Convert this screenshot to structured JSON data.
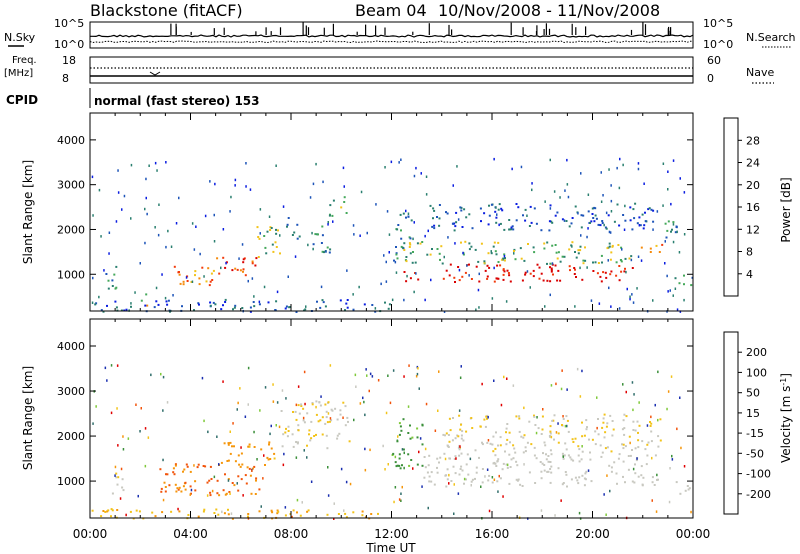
{
  "header": {
    "station": "Blackstone (fitACF)",
    "beam": "Beam 04",
    "dates": "10/Nov/2008 - 11/Nov/2008",
    "cpid": "normal (fast stereo) 153"
  },
  "strip_labels": {
    "nsky": "N.Sky",
    "nsearch": "N.Search",
    "freq_line1": "Freq.",
    "freq_line2": "[MHz]",
    "nave": "Nave",
    "cpid": "CPID"
  },
  "strip_ticks": {
    "noise_top": "10^5",
    "noise_bottom": "10^0",
    "noise_top_right": "10^5",
    "noise_bottom_right": "10^0",
    "freq_top": "18",
    "freq_bottom": "8",
    "nave_top": "60",
    "nave_bottom": "0"
  },
  "chart_data": [
    {
      "type": "heatmap",
      "name": "power",
      "ylabel": "Slant Range [km]",
      "xlabel": "Time UT",
      "x_ticks": [
        "00:00",
        "04:00",
        "08:00",
        "12:00",
        "16:00",
        "20:00",
        "00:00"
      ],
      "xlim_hours": [
        0,
        24
      ],
      "ylim": [
        180,
        4600
      ],
      "y_ticks": [
        1000,
        2000,
        3000,
        4000
      ],
      "colorbar": {
        "label": "Power [dB]",
        "ticks": [
          "4",
          "8",
          "12",
          "16",
          "20",
          "24",
          "28"
        ],
        "colors": [
          "#0a1de0",
          "#1d54b8",
          "#2a7f6f",
          "#44a85a",
          "#f2c319",
          "#f58a0b",
          "#f23a0b",
          "#d90000"
        ]
      },
      "regions": [
        {
          "t": [
            0.6,
            1.3
          ],
          "r": [
            700,
            1250
          ],
          "level": 8
        },
        {
          "t": [
            1.8,
            2.3
          ],
          "r": [
            300,
            600
          ],
          "level": 16
        },
        {
          "t": [
            3.3,
            5.0
          ],
          "r": [
            700,
            1250
          ],
          "level": 20
        },
        {
          "t": [
            5.0,
            6.6
          ],
          "r": [
            900,
            1400
          ],
          "level": 24
        },
        {
          "t": [
            6.6,
            7.6
          ],
          "r": [
            1300,
            2100
          ],
          "level": 12
        },
        {
          "t": [
            7.8,
            8.4
          ],
          "r": [
            1800,
            2400
          ],
          "level": 8
        },
        {
          "t": [
            8.8,
            9.6
          ],
          "r": [
            1500,
            2200
          ],
          "level": 8
        },
        {
          "t": [
            9.5,
            10.3
          ],
          "r": [
            2300,
            2800
          ],
          "level": 12
        },
        {
          "t": [
            12.0,
            12.8
          ],
          "r": [
            1300,
            2400
          ],
          "level": 8
        },
        {
          "t": [
            12.4,
            21.6
          ],
          "r": [
            850,
            1250
          ],
          "level": 28
        },
        {
          "t": [
            12.4,
            21.6
          ],
          "r": [
            1250,
            1750
          ],
          "level": 12
        },
        {
          "t": [
            13.5,
            22.5
          ],
          "r": [
            2000,
            2600
          ],
          "level": 4
        },
        {
          "t": [
            21.7,
            22.8
          ],
          "r": [
            1450,
            1700
          ],
          "level": 20
        },
        {
          "t": [
            22.8,
            23.4
          ],
          "r": [
            1700,
            2300
          ],
          "level": 8
        },
        {
          "t": [
            23.2,
            24.0
          ],
          "r": [
            700,
            1000
          ],
          "level": 8
        },
        {
          "t": [
            0.0,
            12.0
          ],
          "r": [
            180,
            450
          ],
          "level": 4
        }
      ]
    },
    {
      "type": "heatmap",
      "name": "velocity",
      "ylabel": "Slant Range [km]",
      "xlabel": "Time UT",
      "x_ticks": [
        "00:00",
        "04:00",
        "08:00",
        "12:00",
        "16:00",
        "20:00",
        "00:00"
      ],
      "xlim_hours": [
        0,
        24
      ],
      "ylim": [
        180,
        4600
      ],
      "y_ticks": [
        1000,
        2000,
        3000,
        4000
      ],
      "colorbar": {
        "label": "Velocity [m s^-1]",
        "ticks": [
          "200",
          "100",
          "50",
          "15",
          "-15",
          "-50",
          "-100",
          "-200"
        ],
        "colors": [
          "#1a2fb0",
          "#2f6d6a",
          "#3b8f3a",
          "#7fc93a",
          "#c8c8c0",
          "#f2c319",
          "#f5960b",
          "#f2540b",
          "#e00000"
        ]
      },
      "regions": [
        {
          "t": [
            0.6,
            1.3
          ],
          "r": [
            700,
            1200
          ],
          "velocity": -10
        },
        {
          "t": [
            2.6,
            6.8
          ],
          "r": [
            700,
            1400
          ],
          "velocity": -80
        },
        {
          "t": [
            5.2,
            7.4
          ],
          "r": [
            1300,
            1900
          ],
          "velocity": -40
        },
        {
          "t": [
            7.5,
            10.3
          ],
          "r": [
            1700,
            2800
          ],
          "velocity": -10
        },
        {
          "t": [
            12.0,
            13.2
          ],
          "r": [
            1300,
            2400
          ],
          "velocity": 40
        },
        {
          "t": [
            13.2,
            22.6
          ],
          "r": [
            900,
            1650
          ],
          "velocity": 0
        },
        {
          "t": [
            14.0,
            22.8
          ],
          "r": [
            1650,
            2500
          ],
          "velocity": -10
        },
        {
          "t": [
            0.0,
            12.0
          ],
          "r": [
            180,
            400
          ],
          "velocity": -30
        },
        {
          "t": [
            23.2,
            24.0
          ],
          "r": [
            700,
            1000
          ],
          "velocity": 0
        }
      ]
    }
  ]
}
